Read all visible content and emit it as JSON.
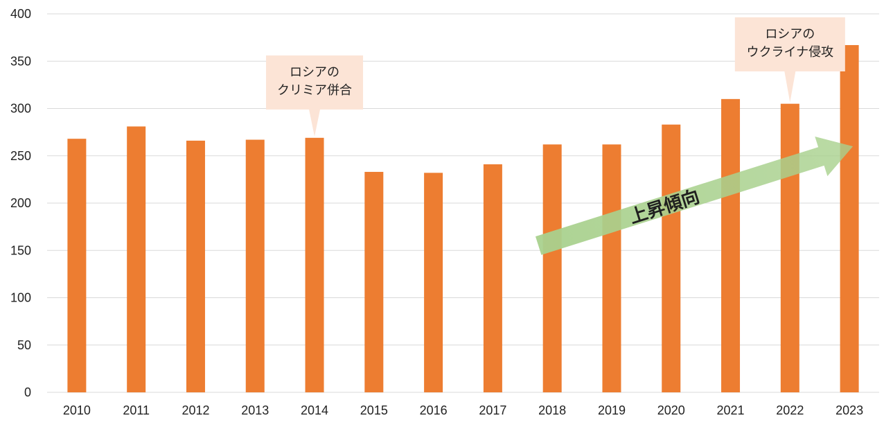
{
  "chart_data": {
    "type": "bar",
    "categories": [
      "2010",
      "2011",
      "2012",
      "2013",
      "2014",
      "2015",
      "2016",
      "2017",
      "2018",
      "2019",
      "2020",
      "2021",
      "2022",
      "2023"
    ],
    "values": [
      268,
      281,
      266,
      267,
      269,
      233,
      232,
      241,
      262,
      262,
      283,
      310,
      305,
      367
    ],
    "yticks": [
      0,
      50,
      100,
      150,
      200,
      250,
      300,
      350,
      400
    ],
    "ylim": [
      0,
      400
    ],
    "grid": true,
    "legend": "none",
    "colors": {
      "bar": "#ED7D31",
      "grid": "#D9D9D9",
      "callout_fill": "#FCE4D6",
      "arrow_fill": "#A9D18E"
    },
    "annotations": [
      {
        "category": "2014",
        "lines": [
          "ロシアの",
          "クリミア併合"
        ]
      },
      {
        "category": "2022",
        "lines": [
          "ロシアの",
          "ウクライナ侵攻"
        ]
      }
    ],
    "trend_arrow": {
      "label": "上昇傾向",
      "from": {
        "category": "2018",
        "value": 155
      },
      "to": {
        "category": "2023",
        "value": 260
      }
    }
  }
}
